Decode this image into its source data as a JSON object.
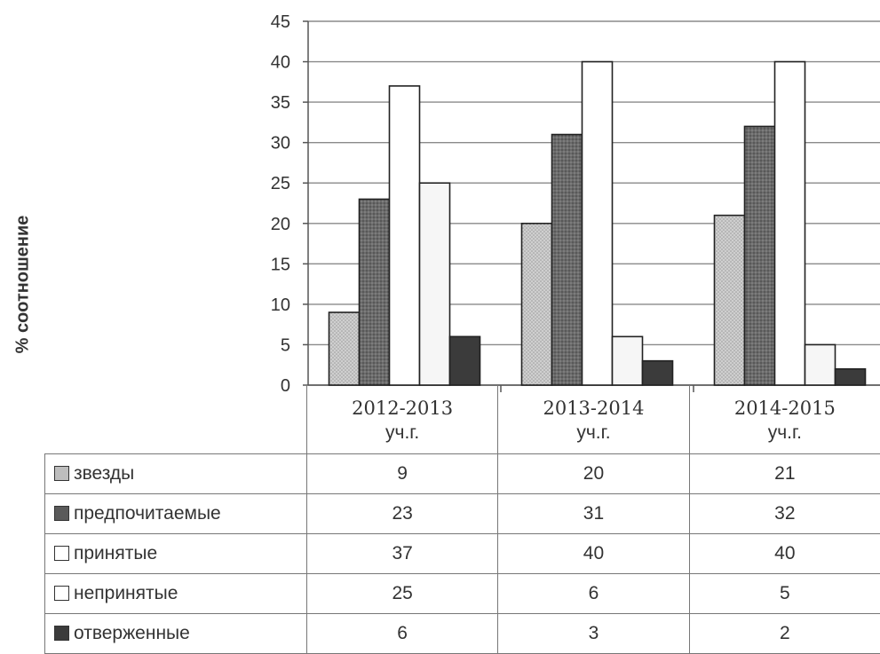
{
  "chart_data": {
    "type": "bar",
    "ylabel": "% соотношение",
    "ylim": [
      0,
      45
    ],
    "yticks": [
      0,
      5,
      10,
      15,
      20,
      25,
      30,
      35,
      40,
      45
    ],
    "grid": true,
    "categories": [
      {
        "line1": "2012-2013",
        "line2": "уч.г."
      },
      {
        "line1": "2013-2014",
        "line2": "уч.г."
      },
      {
        "line1": "2014-2015",
        "line2": "уч.г."
      }
    ],
    "series": [
      {
        "name": "звезды",
        "color": "#cfcfcf",
        "values": [
          9,
          20,
          21
        ]
      },
      {
        "name": "предпочитаемые",
        "color": "#6b6b6b",
        "values": [
          23,
          31,
          32
        ]
      },
      {
        "name": "принятые",
        "color": "#ffffff",
        "values": [
          37,
          40,
          40
        ]
      },
      {
        "name": "непринятые",
        "color": "#f6f6f6",
        "values": [
          25,
          6,
          5
        ]
      },
      {
        "name": "отверженные",
        "color": "#3b3b3b",
        "values": [
          6,
          3,
          2
        ]
      }
    ],
    "legend": "data-table"
  }
}
